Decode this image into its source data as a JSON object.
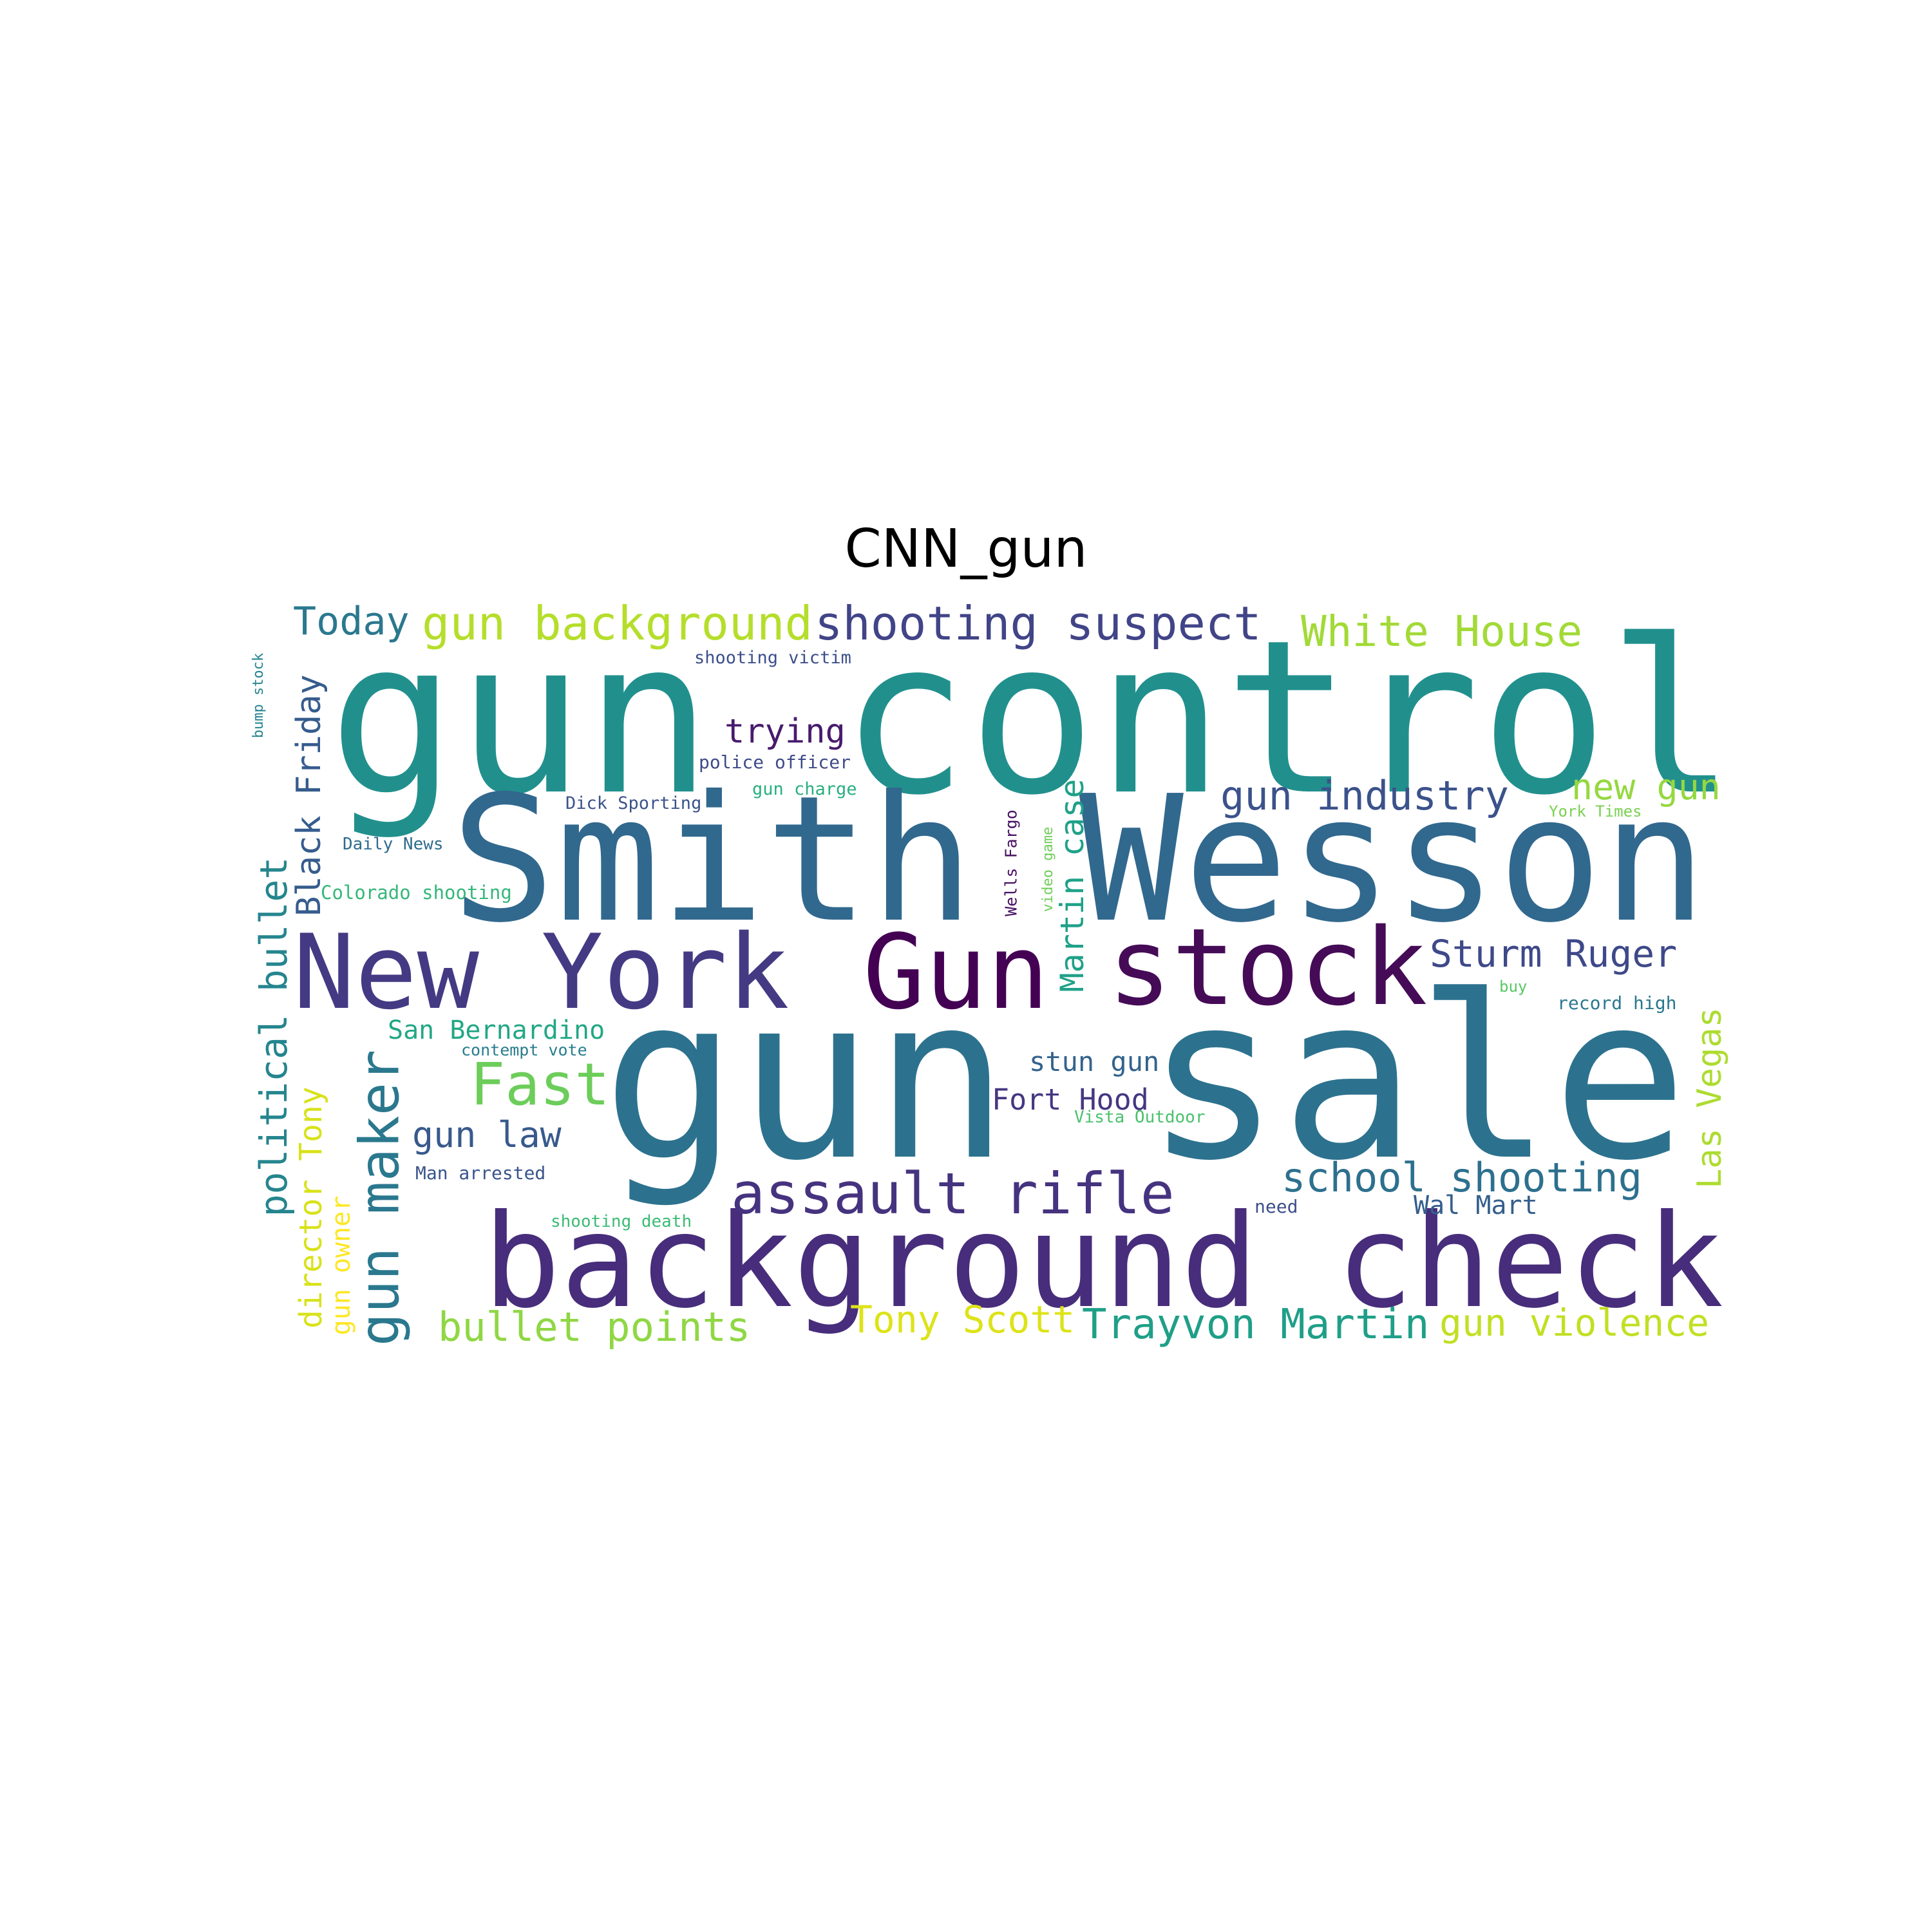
{
  "title": "CNN_gun",
  "palette": {
    "dark_purple": "#440154",
    "purple": "#472c7a",
    "indigo": "#3b518b",
    "blue": "#2c718e",
    "teal_blue": "#21908d",
    "teal": "#27ad81",
    "green": "#5cc863",
    "lime": "#aadc32",
    "yellow": "#fde725"
  },
  "words": [
    {
      "text": "gun control",
      "color": "#21908d"
    },
    {
      "text": "Smith Wesson",
      "color": "#31688e"
    },
    {
      "text": "gun sale",
      "color": "#2c728e"
    },
    {
      "text": "background check",
      "color": "#472d7b"
    },
    {
      "text": "New York",
      "color": "#443a83"
    },
    {
      "text": "Gun",
      "color": "#440154"
    },
    {
      "text": "stock",
      "color": "#450b57"
    },
    {
      "text": "shooting suspect",
      "color": "#414487"
    },
    {
      "text": "gun background",
      "color": "#b5de2b"
    },
    {
      "text": "Today",
      "color": "#2a788e"
    },
    {
      "text": "White House",
      "color": "#a2da37"
    },
    {
      "text": "assault rifle",
      "color": "#46337f"
    },
    {
      "text": "gun maker",
      "color": "#2a788e"
    },
    {
      "text": "political bullet",
      "color": "#25858e"
    },
    {
      "text": "Black Friday",
      "color": "#365c8d"
    },
    {
      "text": "Fast",
      "color": "#6ccd5a"
    },
    {
      "text": "gun law",
      "color": "#38598c"
    },
    {
      "text": "bullet points",
      "color": "#8fd744"
    },
    {
      "text": "Tony Scott",
      "color": "#dde318"
    },
    {
      "text": "Trayvon Martin",
      "color": "#1f9f88"
    },
    {
      "text": "gun violence",
      "color": "#c2df23"
    },
    {
      "text": "school shooting",
      "color": "#2d708e"
    },
    {
      "text": "Sturm Ruger",
      "color": "#3e4989"
    },
    {
      "text": "gun industry",
      "color": "#3b528b"
    },
    {
      "text": "new gun",
      "color": "#95d840"
    },
    {
      "text": "Martin case",
      "color": "#1fa188"
    },
    {
      "text": "Las Vegas",
      "color": "#addc30"
    },
    {
      "text": "director Tony",
      "color": "#d8e219"
    },
    {
      "text": "gun owner",
      "color": "#fde725"
    },
    {
      "text": "trying",
      "color": "#481b6d"
    },
    {
      "text": "San Bernardino",
      "color": "#22a785"
    },
    {
      "text": "stun gun",
      "color": "#33638d"
    },
    {
      "text": "Fort Hood",
      "color": "#453781"
    },
    {
      "text": "Wal Mart",
      "color": "#355f8d"
    },
    {
      "text": "shooting victim",
      "color": "#3c4f8a"
    },
    {
      "text": "police officer",
      "color": "#3e4a89"
    },
    {
      "text": "gun charge",
      "color": "#29af7f"
    },
    {
      "text": "Dick Sporting",
      "color": "#3b528b"
    },
    {
      "text": "Daily News",
      "color": "#2f6c8e"
    },
    {
      "text": "Colorado shooting",
      "color": "#35b779"
    },
    {
      "text": "contempt vote",
      "color": "#287d8e"
    },
    {
      "text": "Man arrested",
      "color": "#3a548c"
    },
    {
      "text": "shooting death",
      "color": "#3bbb75"
    },
    {
      "text": "Vista Outdoor",
      "color": "#4ac16d"
    },
    {
      "text": "need",
      "color": "#3d4e8a"
    },
    {
      "text": "record high",
      "color": "#2a788e"
    },
    {
      "text": "buy",
      "color": "#58c765"
    },
    {
      "text": "York Times",
      "color": "#7ad151"
    },
    {
      "text": "Wells Fargo",
      "color": "#471063"
    },
    {
      "text": "video game",
      "color": "#6ece58"
    },
    {
      "text": "bump stock",
      "color": "#25848e"
    }
  ]
}
